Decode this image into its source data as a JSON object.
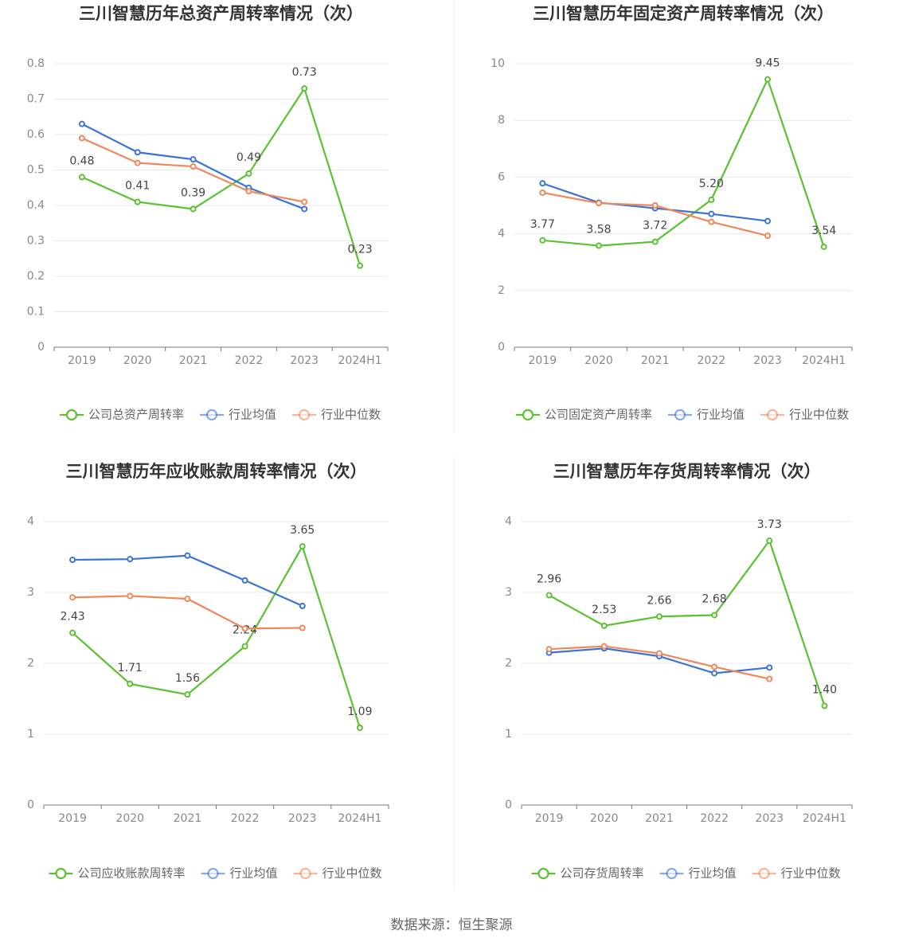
{
  "chart_data": [
    {
      "type": "line",
      "title": "三川智慧历年总资产周转率情况（次）",
      "categories": [
        "2019",
        "2020",
        "2021",
        "2022",
        "2023",
        "2024H1"
      ],
      "ylim": [
        0,
        0.8
      ],
      "yticks": [
        0,
        0.1,
        0.2,
        0.3,
        0.4,
        0.5,
        0.6,
        0.7,
        0.8
      ],
      "grid": true,
      "series": [
        {
          "name": "公司总资产周转率",
          "color": "#5cc132",
          "values": [
            0.48,
            0.41,
            0.39,
            0.49,
            0.73,
            0.23
          ]
        },
        {
          "name": "行业均值",
          "color": "#3a72d8",
          "values": [
            0.63,
            0.55,
            0.53,
            0.45,
            0.39,
            null
          ]
        },
        {
          "name": "行业中位数",
          "color": "#f0875a",
          "values": [
            0.59,
            0.52,
            0.51,
            0.44,
            0.41,
            null
          ]
        }
      ]
    },
    {
      "type": "line",
      "title": "三川智慧历年固定资产周转率情况（次）",
      "categories": [
        "2019",
        "2020",
        "2021",
        "2022",
        "2023",
        "2024H1"
      ],
      "ylim": [
        0,
        10
      ],
      "yticks": [
        0,
        2,
        4,
        6,
        8,
        10
      ],
      "grid": true,
      "series": [
        {
          "name": "公司固定资产周转率",
          "color": "#5cc132",
          "values": [
            3.77,
            3.58,
            3.72,
            5.2,
            9.45,
            3.54
          ],
          "value_labels": [
            "3.77",
            "3.58",
            "3.72",
            "5.20",
            "9.45",
            "3.54"
          ]
        },
        {
          "name": "行业均值",
          "color": "#3a72d8",
          "values": [
            5.78,
            5.1,
            4.9,
            4.7,
            4.45,
            null
          ]
        },
        {
          "name": "行业中位数",
          "color": "#f0875a",
          "values": [
            5.45,
            5.08,
            5.0,
            4.42,
            3.93,
            null
          ]
        }
      ]
    },
    {
      "type": "line",
      "title": "三川智慧历年应收账款周转率情况（次）",
      "categories": [
        "2019",
        "2020",
        "2021",
        "2022",
        "2023",
        "2024H1"
      ],
      "ylim": [
        0,
        4
      ],
      "yticks": [
        0,
        1,
        2,
        3,
        4
      ],
      "grid": true,
      "series": [
        {
          "name": "公司应收账款周转率",
          "color": "#5cc132",
          "values": [
            2.43,
            1.71,
            1.56,
            2.24,
            3.65,
            1.09
          ]
        },
        {
          "name": "行业均值",
          "color": "#3a72d8",
          "values": [
            3.46,
            3.47,
            3.52,
            3.17,
            2.81,
            null
          ]
        },
        {
          "name": "行业中位数",
          "color": "#f0875a",
          "values": [
            2.93,
            2.95,
            2.91,
            2.49,
            2.5,
            null
          ]
        }
      ]
    },
    {
      "type": "line",
      "title": "三川智慧历年存货周转率情况（次）",
      "categories": [
        "2019",
        "2020",
        "2021",
        "2022",
        "2023",
        "2024H1"
      ],
      "ylim": [
        0,
        4
      ],
      "yticks": [
        0,
        1,
        2,
        3,
        4
      ],
      "grid": true,
      "series": [
        {
          "name": "公司存货周转率",
          "color": "#5cc132",
          "values": [
            2.96,
            2.53,
            2.66,
            2.68,
            3.73,
            1.4
          ],
          "value_labels": [
            "2.96",
            "2.53",
            "2.66",
            "2.68",
            "3.73",
            "1.40"
          ]
        },
        {
          "name": "行业均值",
          "color": "#3a72d8",
          "values": [
            2.15,
            2.21,
            2.1,
            1.86,
            1.94,
            null
          ]
        },
        {
          "name": "行业中位数",
          "color": "#f0875a",
          "values": [
            2.2,
            2.24,
            2.14,
            1.95,
            1.78,
            null
          ]
        }
      ]
    }
  ],
  "source": "数据来源：恒生聚源"
}
